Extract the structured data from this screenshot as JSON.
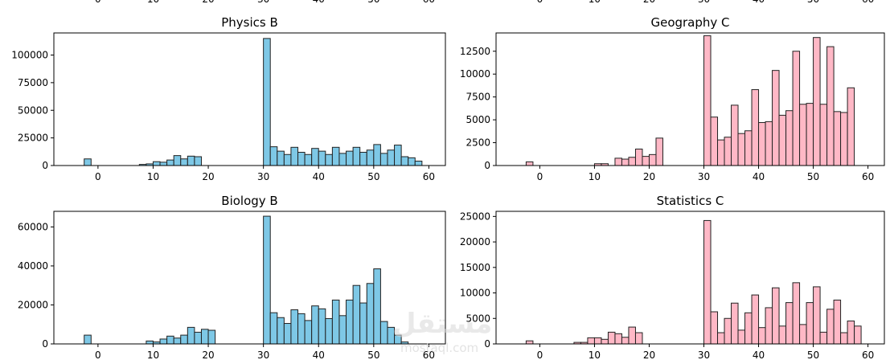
{
  "watermark": {
    "logo_text": "مستقل",
    "site": "mostaql.com"
  },
  "top_partial_ticks": [
    "0",
    "10",
    "20",
    "30",
    "40",
    "50",
    "60"
  ],
  "colors": {
    "blue": "#7ec8e6",
    "pink": "#ffb8c6",
    "edge": "#222222"
  },
  "chart_data": [
    {
      "type": "bar",
      "title": "Physics B",
      "color": "blue",
      "xlim": [
        -8,
        63
      ],
      "ylim": [
        0,
        120000
      ],
      "xticks": [
        0,
        10,
        20,
        30,
        40,
        50,
        60
      ],
      "yticks": [
        0,
        25000,
        50000,
        75000,
        100000
      ],
      "xticklabels": [
        "0",
        "10",
        "20",
        "30",
        "40",
        "50",
        "60"
      ],
      "yticklabels": [
        "0",
        "25000",
        "50000",
        "75000",
        "100000"
      ],
      "bin_start": -2.5,
      "bin_width": 1.25,
      "values": [
        6000,
        0,
        0,
        0,
        0,
        0,
        0,
        0,
        1000,
        1500,
        3500,
        3000,
        5000,
        9000,
        6000,
        8500,
        8000,
        0,
        0,
        0,
        0,
        0,
        0,
        0,
        0,
        0,
        115000,
        17000,
        13000,
        10000,
        16500,
        12000,
        10000,
        15500,
        13000,
        10000,
        16500,
        11000,
        13000,
        16500,
        12000,
        14000,
        19000,
        11000,
        14000,
        18500,
        8000,
        7000,
        4000
      ]
    },
    {
      "type": "bar",
      "title": "Geography C",
      "color": "pink",
      "xlim": [
        -8,
        63
      ],
      "ylim": [
        0,
        14500
      ],
      "xticks": [
        0,
        10,
        20,
        30,
        40,
        50,
        60
      ],
      "yticks": [
        0,
        2500,
        5000,
        7500,
        10000,
        12500
      ],
      "xticklabels": [
        "0",
        "10",
        "20",
        "30",
        "40",
        "50",
        "60"
      ],
      "yticklabels": [
        "0",
        "2500",
        "5000",
        "7500",
        "10000",
        "12500"
      ],
      "bin_start": -2.5,
      "bin_width": 1.25,
      "values": [
        400,
        0,
        0,
        0,
        0,
        0,
        0,
        0,
        0,
        0,
        200,
        200,
        0,
        800,
        700,
        900,
        1800,
        1000,
        1200,
        3000,
        0,
        0,
        0,
        0,
        0,
        0,
        14200,
        5300,
        2800,
        3100,
        6600,
        3500,
        3800,
        8300,
        4700,
        4800,
        10400,
        5500,
        6000,
        12500,
        6700,
        6800,
        14000,
        6700,
        13000,
        5900,
        5800,
        8500
      ]
    },
    {
      "type": "bar",
      "title": "Biology B",
      "color": "blue",
      "xlim": [
        -8,
        63
      ],
      "ylim": [
        0,
        68000
      ],
      "xticks": [
        0,
        10,
        20,
        30,
        40,
        50,
        60
      ],
      "yticks": [
        0,
        20000,
        40000,
        60000
      ],
      "xticklabels": [
        "0",
        "10",
        "20",
        "30",
        "40",
        "50",
        "60"
      ],
      "yticklabels": [
        "0",
        "20000",
        "40000",
        "60000"
      ],
      "bin_start": -2.5,
      "bin_width": 1.25,
      "values": [
        4500,
        0,
        0,
        0,
        0,
        0,
        0,
        0,
        0,
        1500,
        1000,
        2500,
        4000,
        3000,
        4500,
        8500,
        6000,
        7500,
        7000,
        0,
        0,
        0,
        0,
        0,
        0,
        0,
        65500,
        16000,
        13500,
        10500,
        17500,
        15500,
        12000,
        19500,
        18000,
        13000,
        22500,
        14500,
        22500,
        30000,
        21000,
        31000,
        38500,
        11500,
        8500,
        4500,
        1000
      ]
    },
    {
      "type": "bar",
      "title": "Statistics C",
      "color": "pink",
      "xlim": [
        -8,
        63
      ],
      "ylim": [
        0,
        26000
      ],
      "xticks": [
        0,
        10,
        20,
        30,
        40,
        50,
        60
      ],
      "yticks": [
        0,
        5000,
        10000,
        15000,
        20000,
        25000
      ],
      "xticklabels": [
        "0",
        "10",
        "20",
        "30",
        "40",
        "50",
        "60"
      ],
      "yticklabels": [
        "0",
        "5000",
        "10000",
        "15000",
        "20000",
        "25000"
      ],
      "bin_start": -2.5,
      "bin_width": 1.25,
      "values": [
        600,
        0,
        0,
        0,
        0,
        0,
        0,
        300,
        300,
        1200,
        1200,
        900,
        2300,
        2000,
        1300,
        3300,
        2200,
        0,
        0,
        0,
        0,
        0,
        0,
        0,
        0,
        0,
        24200,
        6300,
        2200,
        5000,
        8000,
        2700,
        6100,
        9600,
        3200,
        7100,
        11000,
        3500,
        8100,
        12000,
        3800,
        8100,
        11200,
        2300,
        6800,
        8600,
        2200,
        4500,
        3500
      ]
    }
  ]
}
